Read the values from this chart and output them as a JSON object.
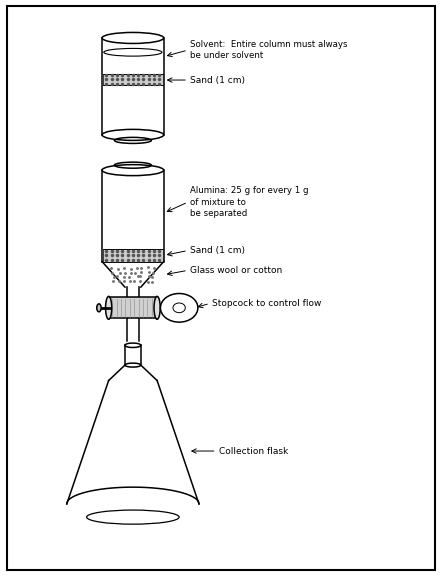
{
  "background_color": "#ffffff",
  "border_color": "#000000",
  "line_color": "#000000",
  "labels": {
    "solvent": "Solvent:  Entire column must always\nbe under solvent",
    "sand_top": "Sand (1 cm)",
    "alumina": "Alumina: 25 g for every 1 g\nof mixture to\nbe separated",
    "sand_bottom": "Sand (1 cm)",
    "glass_wool": "Glass wool or cotton",
    "stopcock": "Stopcock to control flow",
    "flask": "Collection flask"
  },
  "figsize": [
    4.42,
    5.76
  ],
  "dpi": 100
}
